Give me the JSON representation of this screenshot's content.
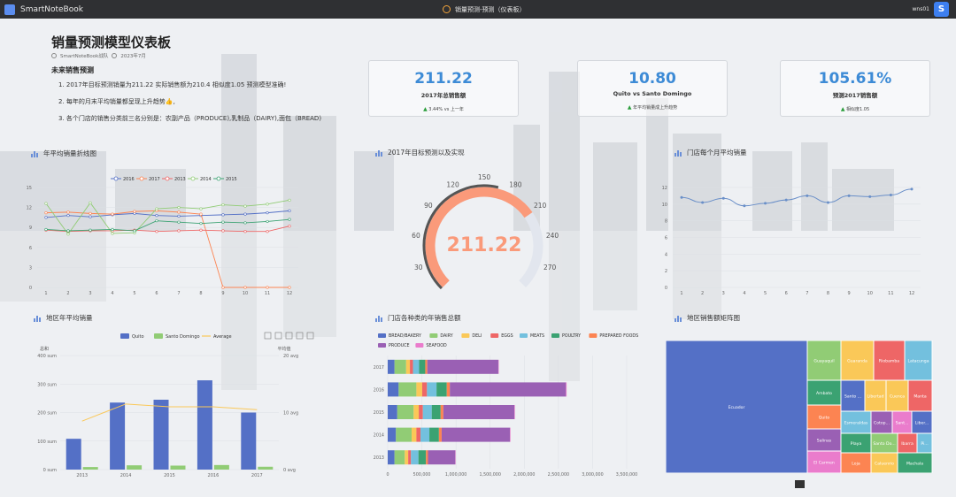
{
  "topbar": {
    "app_name": "SmartNoteBook",
    "doc_title": "销量预测-预测（仪表板）",
    "user": "wns01",
    "avatar_letter": "S"
  },
  "header": {
    "title": "销量预测模型仪表板",
    "author": "SmartNoteBook战队",
    "date": "2023年7月",
    "section_title": "未来销售预测",
    "insights": [
      "1. 2017年目标预测销量为211.22 实际销售额为210.4 相似度1.05 预测模型准确!",
      "2. 每年的月末平均销量都呈现上升趋势👍,",
      "3. 各个门店的销售分类前三名分别是：农副产品（PRODUCE),乳制品（DAIRY),面包（BREAD)"
    ]
  },
  "kpis": [
    {
      "value": "211.22",
      "label": "2017年总销售额",
      "sub": "3.44% vs 上一年"
    },
    {
      "value": "10.80",
      "label": "Quito vs Santo Domingo",
      "sub": "年平均销量成上升趋势"
    },
    {
      "value": "105.61%",
      "label": "预测2017销售额",
      "sub": "相似度1.05"
    }
  ],
  "panels": {
    "yearly_line": "年平均销量折线图",
    "gauge": "2017年目标预测以及实现",
    "store_monthly": "门店每个月平均销量",
    "region_bar": "地区年平均销量",
    "category_bar": "门店各种类的年销售总额",
    "treemap": "地区销售额矩阵图"
  },
  "colors": {
    "accent": "#3d8bd6",
    "blue": "#5470c6",
    "green": "#91cc75",
    "yellow": "#fac858",
    "red": "#ee6666",
    "teal": "#73c0de",
    "dkgreen": "#3ba272",
    "orange": "#fc8452",
    "purple": "#9a60b4",
    "pink": "#ea7ccc"
  },
  "chart_data": [
    {
      "id": "yearly_line",
      "type": "line",
      "x": [
        1,
        2,
        3,
        4,
        5,
        6,
        7,
        8,
        9,
        10,
        11,
        12
      ],
      "ylim": [
        0,
        15
      ],
      "yticks": [
        0,
        3,
        6,
        9,
        12,
        15
      ],
      "series": [
        {
          "name": "2016",
          "values": [
            10.5,
            10.8,
            10.6,
            10.9,
            11.1,
            10.8,
            10.7,
            10.8,
            10.9,
            11.0,
            11.2,
            11.5
          ]
        },
        {
          "name": "2017",
          "values": [
            11.2,
            11.3,
            11.1,
            11.0,
            11.4,
            11.5,
            11.3,
            11.0,
            0,
            0,
            0,
            0
          ]
        },
        {
          "name": "2013",
          "values": [
            8.6,
            8.4,
            8.5,
            8.5,
            8.6,
            8.4,
            8.5,
            8.6,
            8.5,
            8.4,
            8.4,
            9.2
          ]
        },
        {
          "name": "2014",
          "values": [
            12.6,
            8.0,
            12.7,
            8.1,
            8.2,
            11.8,
            12.0,
            11.8,
            12.4,
            12.2,
            12.5,
            13.1
          ]
        },
        {
          "name": "2015",
          "values": [
            8.7,
            8.5,
            8.6,
            8.7,
            8.5,
            10.0,
            9.8,
            9.6,
            9.8,
            9.7,
            9.9,
            10.2
          ]
        }
      ],
      "series_colors": [
        "#5470c6",
        "#fc8452",
        "#ee6666",
        "#91cc75",
        "#3ba272"
      ]
    },
    {
      "id": "gauge",
      "type": "gauge",
      "value": 211.22,
      "min": 0,
      "max": 300,
      "ticks": [
        0,
        30,
        60,
        90,
        120,
        150,
        180,
        210,
        240,
        270,
        300
      ]
    },
    {
      "id": "store_monthly",
      "type": "line",
      "x": [
        1,
        2,
        3,
        4,
        5,
        6,
        7,
        8,
        9,
        10,
        11,
        12
      ],
      "ylim": [
        0,
        12
      ],
      "yticks": [
        0,
        2,
        4,
        6,
        8,
        10,
        12
      ],
      "values": [
        10.8,
        10.2,
        10.7,
        9.8,
        10.1,
        10.5,
        11.0,
        10.2,
        11.0,
        10.9,
        11.1,
        11.8
      ]
    },
    {
      "id": "region_bar",
      "type": "bar",
      "categories": [
        "2013",
        "2014",
        "2015",
        "2016",
        "2017"
      ],
      "series": [
        {
          "name": "Quito",
          "values": [
            108,
            235,
            245,
            313,
            200
          ]
        },
        {
          "name": "Santo Domingo",
          "values": [
            9,
            15,
            14,
            16,
            10
          ]
        },
        {
          "name": "Average",
          "values": [
            8.5,
            11.5,
            11,
            11,
            10.5
          ]
        }
      ],
      "ylabel_left": "总和",
      "ylabel_right": "平均值",
      "ylim_left": [
        0,
        400
      ],
      "yticks_left": [
        "0 sum",
        "100 sum",
        "200 sum",
        "300 sum",
        "400 sum"
      ],
      "ylim_right": [
        0,
        20
      ],
      "yticks_right": [
        "0 avg",
        "10 avg",
        "20 avg"
      ]
    },
    {
      "id": "category_bar",
      "type": "bar",
      "orientation": "horizontal",
      "stacked": true,
      "categories": [
        "2013",
        "2014",
        "2015",
        "2016",
        "2017"
      ],
      "xlim": [
        0,
        3500000
      ],
      "xticks": [
        "0",
        "500,000",
        "1,000,000",
        "1,500,000",
        "2,000,000",
        "2,500,000",
        "3,000,000",
        "3,500,000"
      ],
      "series": [
        {
          "name": "BREAD/BAKERY",
          "values": [
            100000,
            120000,
            140000,
            160000,
            100000
          ]
        },
        {
          "name": "DAIRY",
          "values": [
            150000,
            230000,
            240000,
            260000,
            170000
          ]
        },
        {
          "name": "DELI",
          "values": [
            50000,
            70000,
            75000,
            85000,
            55000
          ]
        },
        {
          "name": "EGGS",
          "values": [
            40000,
            60000,
            60000,
            70000,
            45000
          ]
        },
        {
          "name": "MEATS",
          "values": [
            110000,
            130000,
            130000,
            140000,
            90000
          ]
        },
        {
          "name": "POULTRY",
          "values": [
            110000,
            140000,
            130000,
            150000,
            90000
          ]
        },
        {
          "name": "PREPARED FOODS",
          "values": [
            30000,
            40000,
            40000,
            45000,
            30000
          ]
        },
        {
          "name": "PRODUCE",
          "values": [
            400000,
            1000000,
            1040000,
            1700000,
            1040000
          ]
        },
        {
          "name": "SEAFOOD",
          "values": [
            5000,
            8000,
            8000,
            10000,
            6000
          ]
        }
      ]
    },
    {
      "id": "treemap",
      "type": "treemap",
      "labels": [
        "Ecuador",
        "Guayaquil",
        "Guaranda",
        "Riobamba",
        "Latacunga",
        "Ambato",
        "Santo ...",
        "Libertad",
        "Cuenca",
        "Manta",
        "Quito",
        "Esmeraldas",
        "Cotop...",
        "Sant...",
        "Liber...",
        "Salinas",
        "Playa",
        "Santo Do...",
        "Ibarra",
        "Pi...",
        "El Carmen",
        "Loja",
        "Caluenrio",
        "Machala"
      ]
    }
  ]
}
